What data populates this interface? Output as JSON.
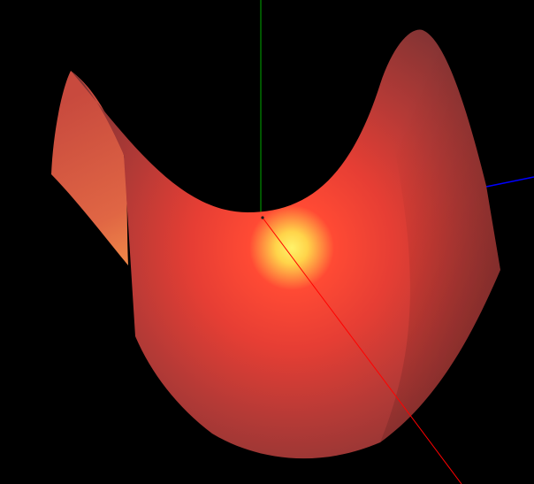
{
  "scene": {
    "background": "#000000",
    "surface_color": "#d94a3a",
    "highlight_color": "#fff36a",
    "axis_colors": {
      "x": "#ff0000",
      "y": "#00aa00",
      "z": "#0000ff"
    }
  }
}
